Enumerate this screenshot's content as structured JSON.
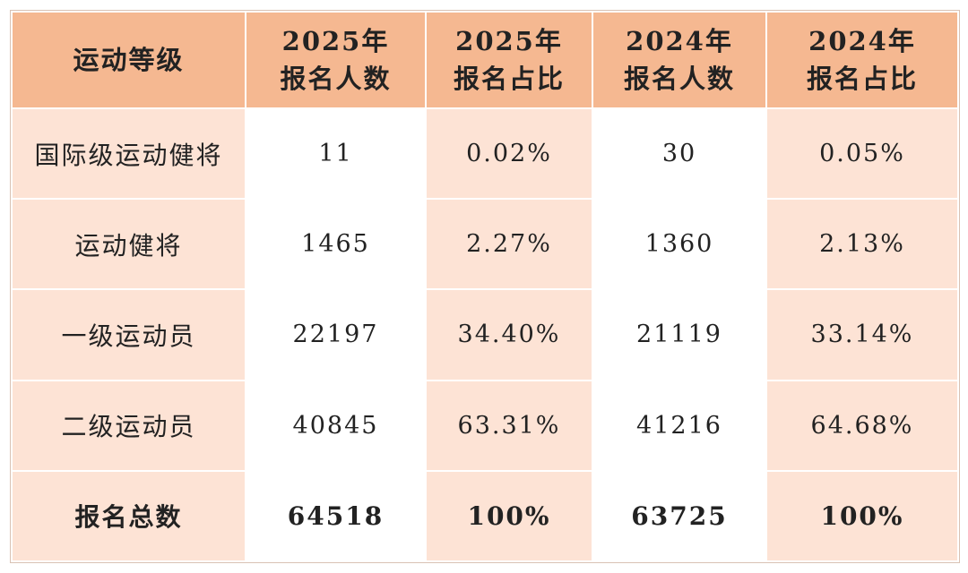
{
  "chart_data": {
    "type": "table",
    "columns": [
      {
        "line1": "运动等级",
        "line2": ""
      },
      {
        "line1": "2025年",
        "line2": "报名人数"
      },
      {
        "line1": "2025年",
        "line2": "报名占比"
      },
      {
        "line1": "2024年",
        "line2": "报名人数"
      },
      {
        "line1": "2024年",
        "line2": "报名占比"
      }
    ],
    "rows": [
      {
        "label": "国际级运动健将",
        "cells": [
          "11",
          "0.02%",
          "30",
          "0.05%"
        ]
      },
      {
        "label": "运动健将",
        "cells": [
          "1465",
          "2.27%",
          "1360",
          "2.13%"
        ]
      },
      {
        "label": "一级运动员",
        "cells": [
          "22197",
          "34.40%",
          "21119",
          "33.14%"
        ]
      },
      {
        "label": "二级运动员",
        "cells": [
          "40845",
          "63.31%",
          "41216",
          "64.68%"
        ]
      },
      {
        "label": "报名总数",
        "cells": [
          "64518",
          "100%",
          "63725",
          "100%"
        ]
      }
    ],
    "colors": {
      "header_bg": "#f5b891",
      "label_bg": "#fde3d5",
      "alt_bg": "#fde3d5",
      "plain_bg": "#ffffff"
    }
  }
}
